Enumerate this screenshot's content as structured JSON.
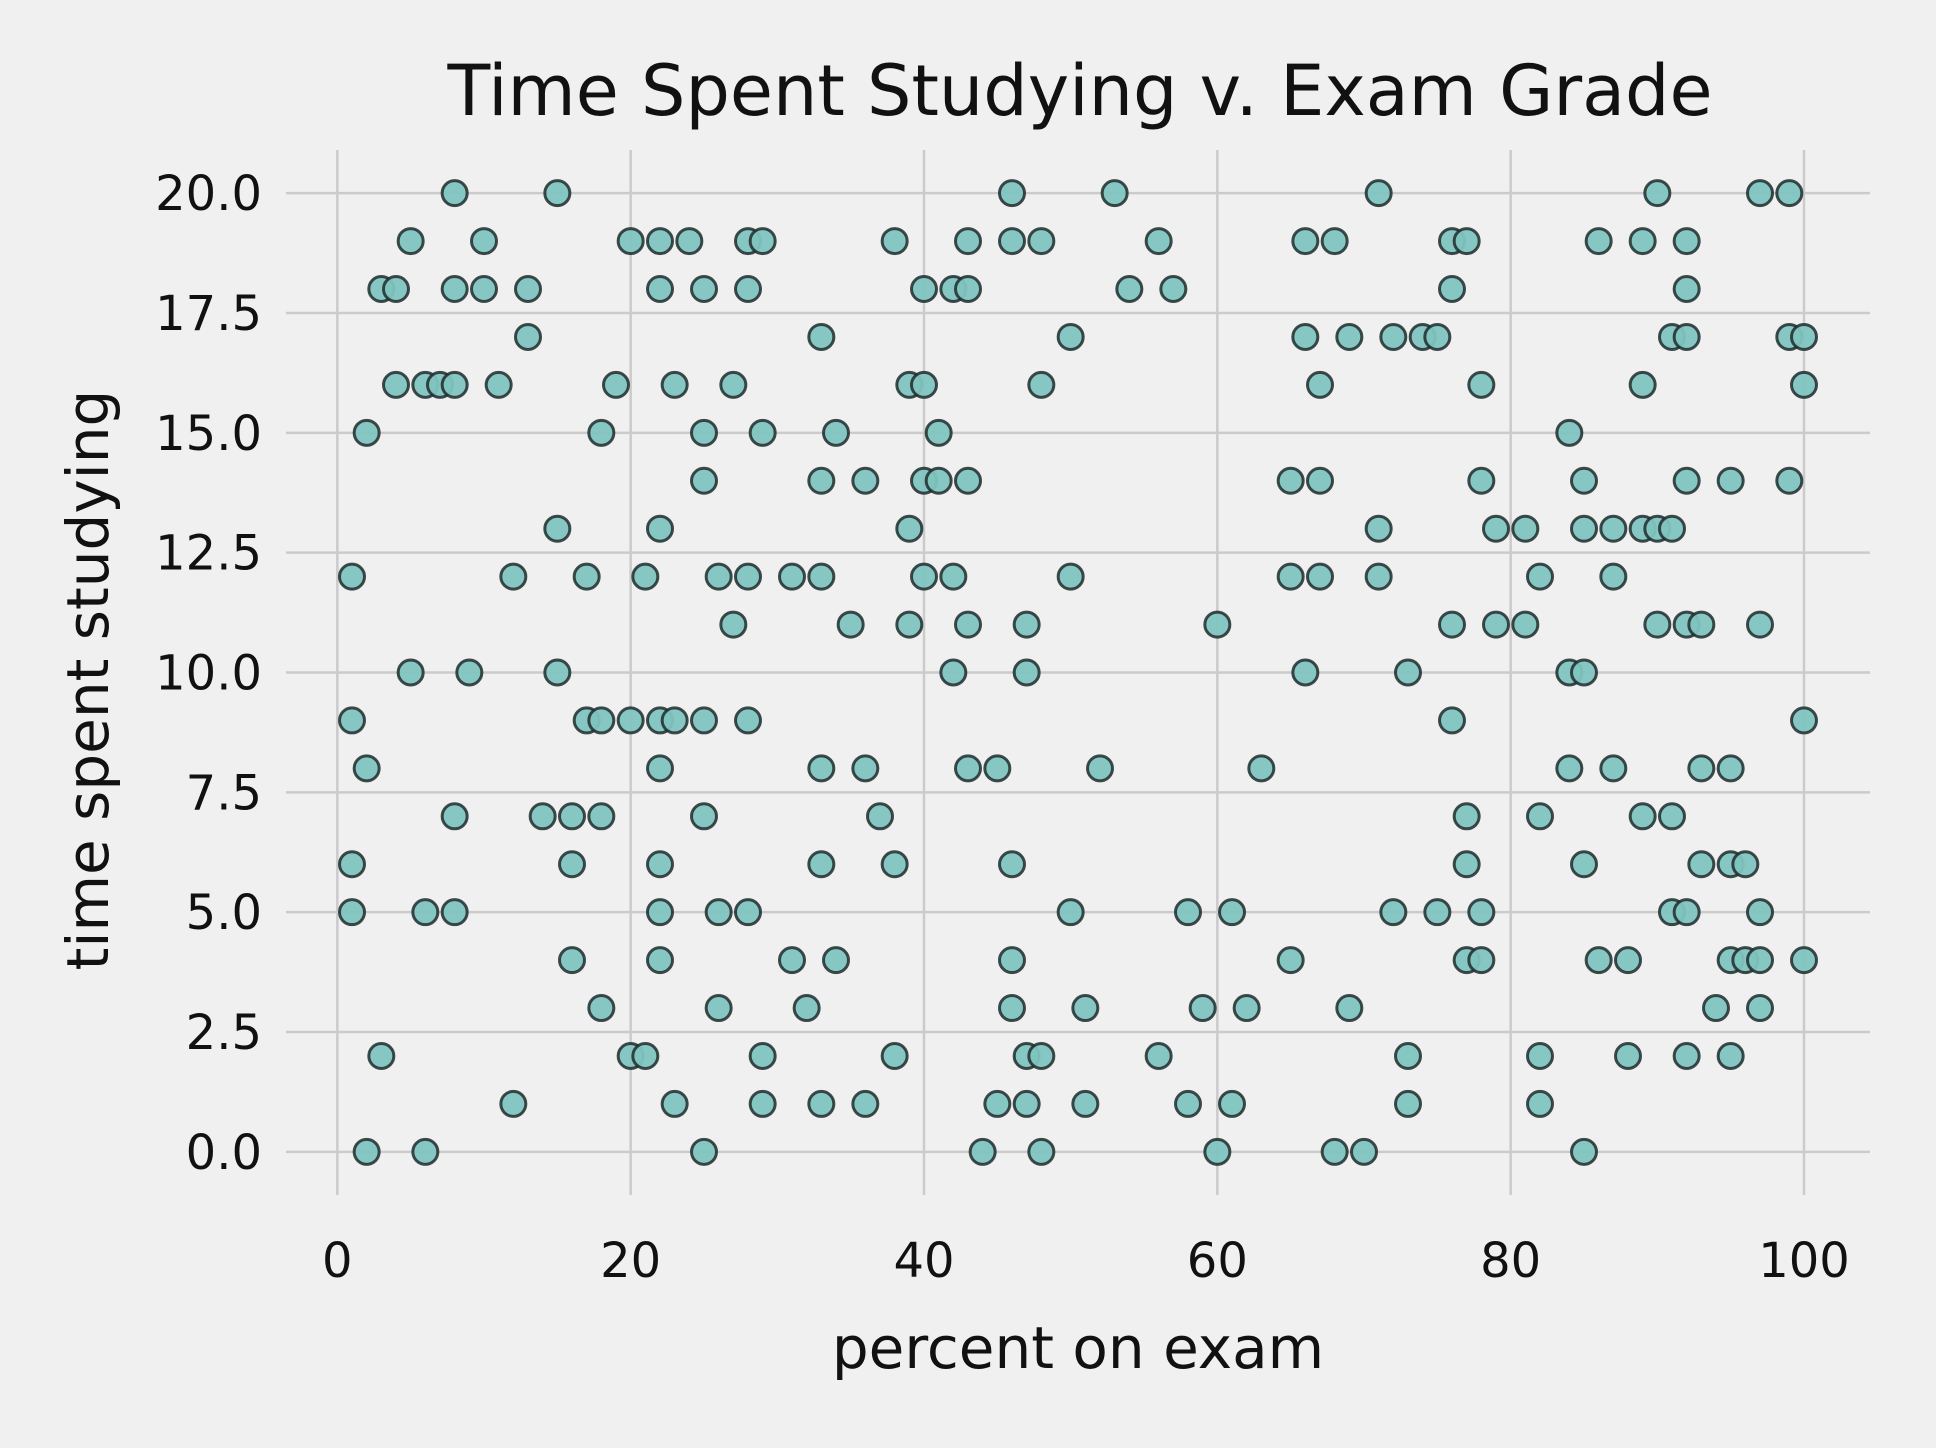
{
  "chart_data": {
    "type": "scatter",
    "title": "Time Spent Studying v. Exam Grade",
    "xlabel": "percent on exam",
    "ylabel": "time spent studying",
    "xlim": [
      -3.5,
      104.5
    ],
    "ylim": [
      -0.9,
      20.9
    ],
    "xticks": [
      0,
      20,
      40,
      60,
      80,
      100
    ],
    "xtick_labels": [
      "0",
      "20",
      "40",
      "60",
      "80",
      "100"
    ],
    "yticks": [
      0,
      2.5,
      5,
      7.5,
      10,
      12.5,
      15,
      17.5,
      20
    ],
    "ytick_labels": [
      "0.0",
      "2.5",
      "5.0",
      "7.5",
      "10.0",
      "12.5",
      "15.0",
      "17.5",
      "20.0"
    ],
    "grid": true,
    "legend": "none",
    "colors": {
      "background": "#f0f0f0",
      "grid": "#cbcbcb",
      "marker_fill": "#7fc4c0",
      "marker_edge": "#1e2b2b",
      "text": "#111111"
    },
    "series": [
      {
        "points": [
          [
            8,
            20
          ],
          [
            15,
            20
          ],
          [
            46,
            20
          ],
          [
            53,
            20
          ],
          [
            71,
            20
          ],
          [
            90,
            20
          ],
          [
            97,
            20
          ],
          [
            99,
            20
          ],
          [
            5,
            19
          ],
          [
            10,
            19
          ],
          [
            20,
            19
          ],
          [
            22,
            19
          ],
          [
            24,
            19
          ],
          [
            28,
            19
          ],
          [
            29,
            19
          ],
          [
            38,
            19
          ],
          [
            43,
            19
          ],
          [
            46,
            19
          ],
          [
            48,
            19
          ],
          [
            56,
            19
          ],
          [
            66,
            19
          ],
          [
            68,
            19
          ],
          [
            76,
            19
          ],
          [
            77,
            19
          ],
          [
            86,
            19
          ],
          [
            89,
            19
          ],
          [
            92,
            19
          ],
          [
            3,
            18
          ],
          [
            4,
            18
          ],
          [
            8,
            18
          ],
          [
            10,
            18
          ],
          [
            13,
            18
          ],
          [
            22,
            18
          ],
          [
            25,
            18
          ],
          [
            28,
            18
          ],
          [
            40,
            18
          ],
          [
            42,
            18
          ],
          [
            43,
            18
          ],
          [
            54,
            18
          ],
          [
            57,
            18
          ],
          [
            76,
            18
          ],
          [
            92,
            18
          ],
          [
            13,
            17
          ],
          [
            33,
            17
          ],
          [
            50,
            17
          ],
          [
            66,
            17
          ],
          [
            69,
            17
          ],
          [
            72,
            17
          ],
          [
            74,
            17
          ],
          [
            75,
            17
          ],
          [
            91,
            17
          ],
          [
            92,
            17
          ],
          [
            99,
            17
          ],
          [
            100,
            17
          ],
          [
            4,
            16
          ],
          [
            6,
            16
          ],
          [
            7,
            16
          ],
          [
            8,
            16
          ],
          [
            11,
            16
          ],
          [
            19,
            16
          ],
          [
            23,
            16
          ],
          [
            27,
            16
          ],
          [
            39,
            16
          ],
          [
            40,
            16
          ],
          [
            48,
            16
          ],
          [
            67,
            16
          ],
          [
            78,
            16
          ],
          [
            89,
            16
          ],
          [
            100,
            16
          ],
          [
            2,
            15
          ],
          [
            18,
            15
          ],
          [
            25,
            15
          ],
          [
            29,
            15
          ],
          [
            34,
            15
          ],
          [
            41,
            15
          ],
          [
            84,
            15
          ],
          [
            25,
            14
          ],
          [
            33,
            14
          ],
          [
            36,
            14
          ],
          [
            40,
            14
          ],
          [
            41,
            14
          ],
          [
            43,
            14
          ],
          [
            65,
            14
          ],
          [
            67,
            14
          ],
          [
            78,
            14
          ],
          [
            85,
            14
          ],
          [
            92,
            14
          ],
          [
            95,
            14
          ],
          [
            99,
            14
          ],
          [
            15,
            13
          ],
          [
            22,
            13
          ],
          [
            39,
            13
          ],
          [
            71,
            13
          ],
          [
            79,
            13
          ],
          [
            81,
            13
          ],
          [
            85,
            13
          ],
          [
            87,
            13
          ],
          [
            89,
            13
          ],
          [
            90,
            13
          ],
          [
            91,
            13
          ],
          [
            1,
            12
          ],
          [
            12,
            12
          ],
          [
            17,
            12
          ],
          [
            21,
            12
          ],
          [
            26,
            12
          ],
          [
            28,
            12
          ],
          [
            31,
            12
          ],
          [
            33,
            12
          ],
          [
            40,
            12
          ],
          [
            42,
            12
          ],
          [
            50,
            12
          ],
          [
            65,
            12
          ],
          [
            67,
            12
          ],
          [
            71,
            12
          ],
          [
            82,
            12
          ],
          [
            87,
            12
          ],
          [
            27,
            11
          ],
          [
            35,
            11
          ],
          [
            39,
            11
          ],
          [
            43,
            11
          ],
          [
            47,
            11
          ],
          [
            60,
            11
          ],
          [
            76,
            11
          ],
          [
            79,
            11
          ],
          [
            81,
            11
          ],
          [
            90,
            11
          ],
          [
            92,
            11
          ],
          [
            93,
            11
          ],
          [
            97,
            11
          ],
          [
            5,
            10
          ],
          [
            9,
            10
          ],
          [
            15,
            10
          ],
          [
            42,
            10
          ],
          [
            47,
            10
          ],
          [
            66,
            10
          ],
          [
            73,
            10
          ],
          [
            84,
            10
          ],
          [
            85,
            10
          ],
          [
            1,
            9
          ],
          [
            17,
            9
          ],
          [
            18,
            9
          ],
          [
            20,
            9
          ],
          [
            22,
            9
          ],
          [
            23,
            9
          ],
          [
            25,
            9
          ],
          [
            28,
            9
          ],
          [
            76,
            9
          ],
          [
            100,
            9
          ],
          [
            2,
            8
          ],
          [
            22,
            8
          ],
          [
            33,
            8
          ],
          [
            36,
            8
          ],
          [
            43,
            8
          ],
          [
            45,
            8
          ],
          [
            52,
            8
          ],
          [
            63,
            8
          ],
          [
            84,
            8
          ],
          [
            87,
            8
          ],
          [
            93,
            8
          ],
          [
            95,
            8
          ],
          [
            8,
            7
          ],
          [
            14,
            7
          ],
          [
            16,
            7
          ],
          [
            18,
            7
          ],
          [
            25,
            7
          ],
          [
            37,
            7
          ],
          [
            77,
            7
          ],
          [
            82,
            7
          ],
          [
            89,
            7
          ],
          [
            91,
            7
          ],
          [
            1,
            6
          ],
          [
            16,
            6
          ],
          [
            22,
            6
          ],
          [
            33,
            6
          ],
          [
            38,
            6
          ],
          [
            46,
            6
          ],
          [
            77,
            6
          ],
          [
            85,
            6
          ],
          [
            93,
            6
          ],
          [
            95,
            6
          ],
          [
            96,
            6
          ],
          [
            1,
            5
          ],
          [
            6,
            5
          ],
          [
            8,
            5
          ],
          [
            22,
            5
          ],
          [
            26,
            5
          ],
          [
            28,
            5
          ],
          [
            50,
            5
          ],
          [
            58,
            5
          ],
          [
            61,
            5
          ],
          [
            72,
            5
          ],
          [
            75,
            5
          ],
          [
            78,
            5
          ],
          [
            91,
            5
          ],
          [
            92,
            5
          ],
          [
            97,
            5
          ],
          [
            16,
            4
          ],
          [
            22,
            4
          ],
          [
            31,
            4
          ],
          [
            34,
            4
          ],
          [
            46,
            4
          ],
          [
            65,
            4
          ],
          [
            77,
            4
          ],
          [
            78,
            4
          ],
          [
            86,
            4
          ],
          [
            88,
            4
          ],
          [
            95,
            4
          ],
          [
            96,
            4
          ],
          [
            97,
            4
          ],
          [
            100,
            4
          ],
          [
            18,
            3
          ],
          [
            26,
            3
          ],
          [
            32,
            3
          ],
          [
            46,
            3
          ],
          [
            51,
            3
          ],
          [
            59,
            3
          ],
          [
            62,
            3
          ],
          [
            69,
            3
          ],
          [
            94,
            3
          ],
          [
            97,
            3
          ],
          [
            3,
            2
          ],
          [
            20,
            2
          ],
          [
            21,
            2
          ],
          [
            29,
            2
          ],
          [
            38,
            2
          ],
          [
            47,
            2
          ],
          [
            48,
            2
          ],
          [
            56,
            2
          ],
          [
            73,
            2
          ],
          [
            82,
            2
          ],
          [
            88,
            2
          ],
          [
            92,
            2
          ],
          [
            95,
            2
          ],
          [
            12,
            1
          ],
          [
            23,
            1
          ],
          [
            29,
            1
          ],
          [
            33,
            1
          ],
          [
            36,
            1
          ],
          [
            45,
            1
          ],
          [
            47,
            1
          ],
          [
            51,
            1
          ],
          [
            58,
            1
          ],
          [
            61,
            1
          ],
          [
            73,
            1
          ],
          [
            82,
            1
          ],
          [
            2,
            0
          ],
          [
            6,
            0
          ],
          [
            25,
            0
          ],
          [
            44,
            0
          ],
          [
            48,
            0
          ],
          [
            60,
            0
          ],
          [
            68,
            0
          ],
          [
            70,
            0
          ],
          [
            85,
            0
          ]
        ]
      }
    ]
  }
}
